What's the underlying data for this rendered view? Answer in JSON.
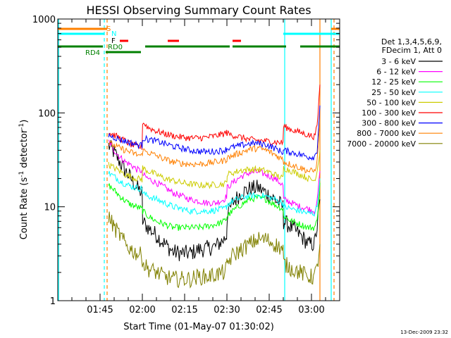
{
  "chart_data": {
    "type": "line",
    "title": "HESSI Observing Summary Count Rates",
    "xlabel": "Start Time (01-May-07 01:30:02)",
    "ylabel_main": "Count Rate (s",
    "ylabel_sup1": "-1",
    "ylabel_mid": " detector",
    "ylabel_sup2": "-1",
    "ylabel_end": ")",
    "yscale": "log",
    "ylim": [
      1,
      1000
    ],
    "xlim_minutes": [
      0,
      100
    ],
    "xticks": [
      {
        "label": "01:45",
        "t": 15
      },
      {
        "label": "02:00",
        "t": 30
      },
      {
        "label": "02:15",
        "t": 45
      },
      {
        "label": "02:30",
        "t": 60
      },
      {
        "label": "02:45",
        "t": 75
      },
      {
        "label": "03:00",
        "t": 90
      }
    ],
    "yticks": [
      {
        "label": "1",
        "v": 1
      },
      {
        "label": "10",
        "v": 10
      },
      {
        "label": "100",
        "v": 100
      },
      {
        "label": "1000",
        "v": 1000
      }
    ],
    "legend_header": [
      "Det 1,3,4,5,6,9,",
      "FDecim 1, Att 0"
    ],
    "timestamp": "13-Dec-2009 23:32",
    "flags": {
      "S_label": "S",
      "N_label": "N",
      "F_label": "F",
      "RD0_label": "RD0",
      "RD4_label": "RD4",
      "saa_color": "#ff8000",
      "night_color": "#00ffff",
      "flare_color": "#ff0000",
      "rd_color": "#008000",
      "saa": [
        [
          0,
          17.5
        ],
        [
          97,
          100
        ]
      ],
      "night": [
        [
          0,
          16.5
        ],
        [
          80,
          100
        ]
      ],
      "flare": [
        [
          22,
          25
        ],
        [
          39,
          43
        ],
        [
          62,
          65
        ]
      ],
      "rd0": [
        [
          0,
          16
        ],
        [
          31,
          61
        ],
        [
          62,
          81
        ],
        [
          86,
          100
        ]
      ],
      "rd4": [
        [
          17,
          29.5
        ]
      ]
    },
    "vlines": [
      {
        "t": 0.3,
        "color": "#00ffff",
        "dash": false
      },
      {
        "t": 16.5,
        "color": "#00ffff",
        "dash": true
      },
      {
        "t": 17.5,
        "color": "#ff8000",
        "dash": true
      },
      {
        "t": 80.5,
        "color": "#00ffff",
        "dash": false
      },
      {
        "t": 93,
        "color": "#ff8000",
        "dash": false
      },
      {
        "t": 97,
        "color": "#00ffff",
        "dash": false
      },
      {
        "t": 98,
        "color": "#ff8000",
        "dash": true
      }
    ],
    "x_minutes": [
      18,
      20,
      22,
      24,
      26,
      28,
      29.9,
      30.1,
      32,
      35,
      38,
      41,
      44,
      47,
      50,
      53,
      56,
      59,
      59.9,
      60.1,
      62,
      65,
      68,
      71,
      74,
      77,
      79.9,
      80.1,
      83,
      86,
      89,
      91,
      92,
      93
    ],
    "series": [
      {
        "name": "3 - 6 keV",
        "color": "#000000",
        "values": [
          45,
          38,
          30,
          24,
          20,
          16,
          14,
          7,
          6,
          5,
          4,
          3.3,
          3.2,
          3.2,
          3.5,
          3.6,
          3.8,
          4.5,
          5,
          8,
          11,
          14,
          15.5,
          16,
          14,
          12,
          10,
          7,
          6,
          5,
          4,
          4,
          6,
          12
        ]
      },
      {
        "name": "6 - 12 keV",
        "color": "#ff00ff",
        "values": [
          50,
          40,
          34,
          30,
          28,
          25,
          24,
          22,
          20,
          18,
          16,
          14,
          13,
          12,
          11.5,
          11,
          11,
          12,
          13,
          16,
          18,
          21,
          23,
          23.5,
          22,
          20,
          17,
          12,
          11,
          10,
          9.5,
          9,
          11,
          24
        ]
      },
      {
        "name": "12 - 25 keV",
        "color": "#00ff00",
        "values": [
          17,
          15,
          13,
          11.5,
          10.5,
          10,
          9.5,
          9,
          8,
          7,
          6.5,
          6,
          6,
          6,
          6,
          6.2,
          6.5,
          7,
          7.5,
          8,
          9,
          10.5,
          12,
          12.5,
          12,
          10.5,
          9.5,
          8,
          7,
          6.5,
          6,
          6,
          7,
          18
        ]
      },
      {
        "name": "25 - 50 keV",
        "color": "#00ffff",
        "values": [
          23,
          21,
          19,
          17.5,
          16.5,
          16,
          15.5,
          14,
          13,
          12,
          11,
          10,
          9.5,
          9,
          9,
          9,
          9.2,
          9.5,
          10,
          10.5,
          11.5,
          12.5,
          13,
          13.2,
          13,
          12,
          11,
          10,
          9.5,
          9,
          8.5,
          8.5,
          10,
          20
        ]
      },
      {
        "name": "50 - 100 keV",
        "color": "#cccc00",
        "values": [
          28,
          26,
          24,
          22,
          21,
          20,
          19.5,
          26,
          24,
          22,
          20,
          19,
          18,
          17.5,
          17,
          17,
          17.2,
          17.5,
          18,
          22,
          23,
          24.5,
          25,
          25,
          24,
          22,
          20,
          26,
          24,
          22,
          20,
          19,
          24,
          40
        ]
      },
      {
        "name": "100 - 300 keV",
        "color": "#ff0000",
        "values": [
          62,
          58,
          54,
          50,
          46,
          44,
          43,
          80,
          70,
          64,
          60,
          57,
          55,
          54,
          54,
          55,
          57,
          60,
          62,
          60,
          58,
          55,
          52,
          51,
          50,
          49,
          48,
          72,
          66,
          62,
          58,
          56,
          70,
          200
        ]
      },
      {
        "name": "300 - 800 keV",
        "color": "#0000ff",
        "values": [
          58,
          55,
          52,
          50,
          48,
          46,
          45,
          54,
          52,
          50,
          47,
          44,
          42,
          40,
          39,
          38.5,
          39,
          40,
          41,
          42,
          43,
          45,
          47,
          47.5,
          46,
          42,
          38,
          40,
          38,
          36,
          34,
          34,
          40,
          120
        ]
      },
      {
        "name": "800 - 7000 keV",
        "color": "#ff8000",
        "values": [
          48,
          45,
          42,
          40,
          38,
          36,
          35,
          40,
          38,
          35,
          32,
          30,
          29,
          28.5,
          28.5,
          29,
          30,
          31,
          32,
          33,
          35,
          38,
          41,
          42,
          40,
          36,
          32,
          30,
          28,
          26,
          24,
          24,
          30,
          80
        ]
      },
      {
        "name": "7000 - 20000 keV",
        "color": "#808000",
        "values": [
          8,
          6,
          5,
          4,
          3.5,
          3.2,
          3,
          2.5,
          2.2,
          2,
          1.8,
          1.7,
          1.7,
          1.7,
          1.8,
          1.8,
          1.9,
          2,
          2.2,
          2.5,
          3,
          3.5,
          4,
          4.5,
          4.5,
          4,
          3.5,
          2.5,
          2.2,
          2,
          1.8,
          1.8,
          2.2,
          4
        ]
      }
    ]
  }
}
